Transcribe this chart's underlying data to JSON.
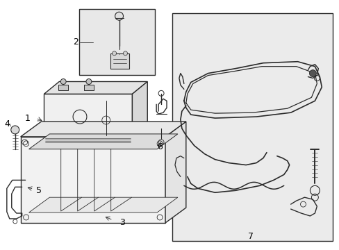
{
  "bg_color": "#ffffff",
  "box_bg": "#ebebeb",
  "line_color": "#2a2a2a",
  "label_fontsize": 9,
  "figsize": [
    4.89,
    3.6
  ],
  "dpi": 100
}
